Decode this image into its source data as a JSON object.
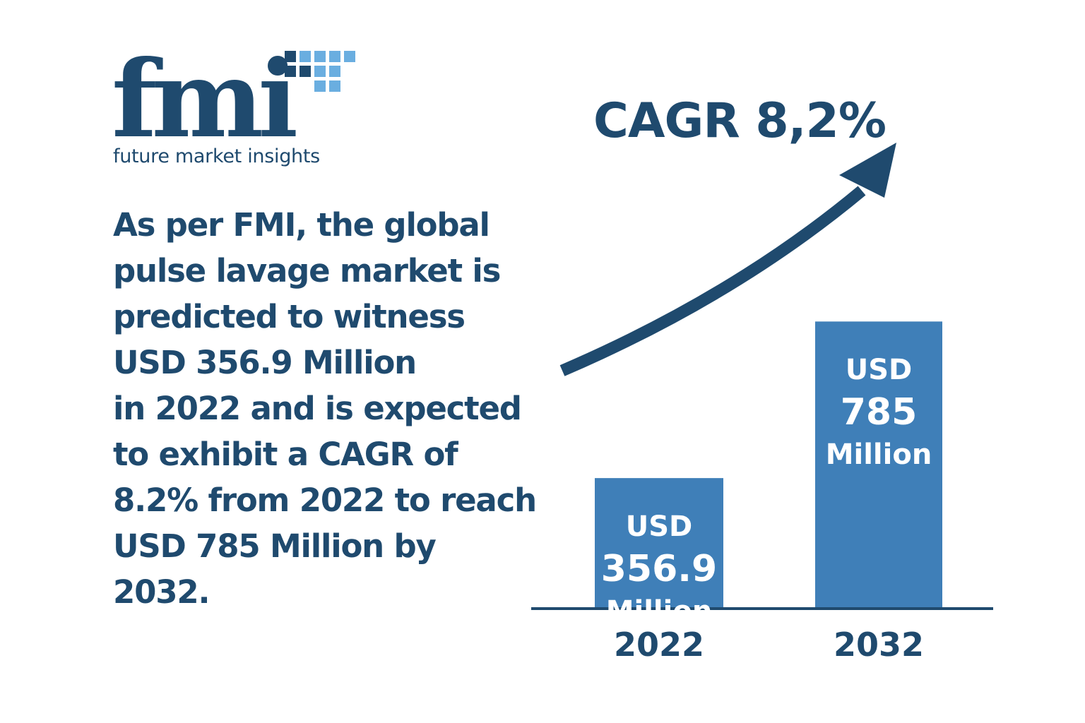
{
  "logo": {
    "wordmark": "fmi",
    "tagline": "future market insights"
  },
  "description": "As per FMI, the global\npulse lavage market is\npredicted to witness\nUSD 356.9 Million\nin 2022 and is expected\nto exhibit a CAGR of\n8.2% from 2022 to reach\nUSD 785 Million by\n2032.",
  "colors": {
    "navy": "#1f4a6e",
    "bar": "#3f7fb8",
    "logo_squares_dark": "#1f4a6e",
    "logo_squares_light": "#6aaee0"
  },
  "chart_data": {
    "type": "bar",
    "title": "CAGR 8,2%",
    "categories": [
      "2022",
      "2032"
    ],
    "values": [
      356.9,
      785
    ],
    "bar_labels": [
      {
        "prefix": "USD",
        "value": "356.9",
        "unit": "Million"
      },
      {
        "prefix": "USD",
        "value": "785",
        "unit": "Million"
      }
    ],
    "ylim": [
      0,
      1000
    ],
    "grid": false,
    "legend": "none",
    "annotation": "upward arrow"
  }
}
